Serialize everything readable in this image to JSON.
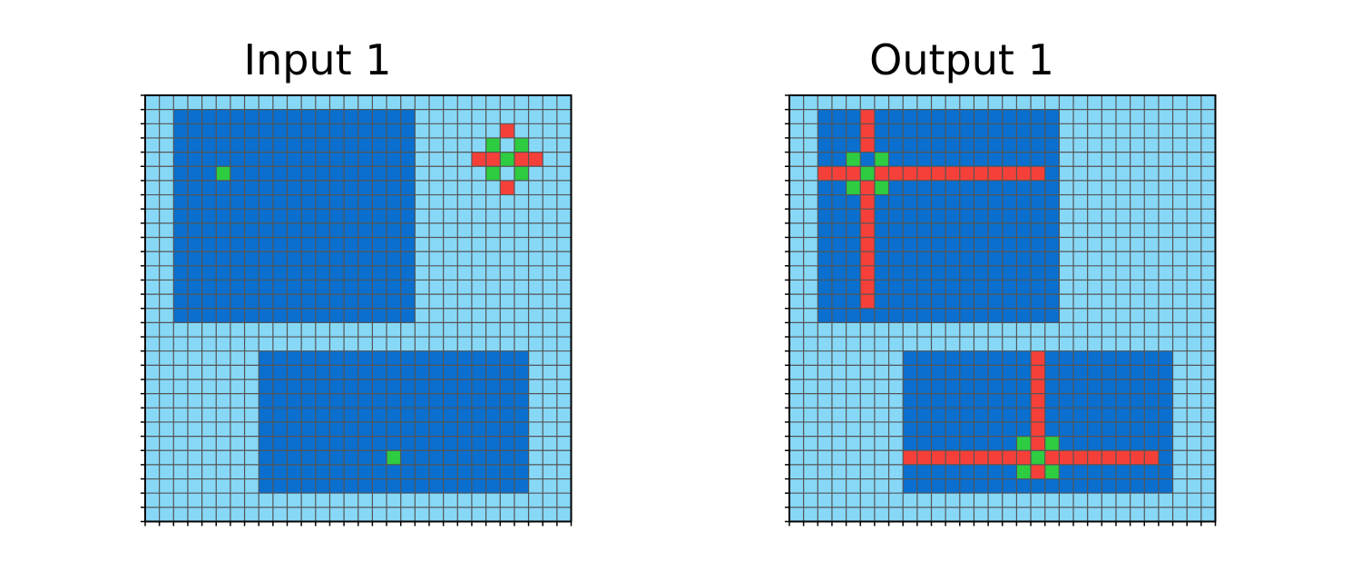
{
  "panels": [
    {
      "title": "Input 1",
      "grid": "input"
    },
    {
      "title": "Output 1",
      "grid": "output"
    }
  ],
  "grid": {
    "rows": 30,
    "cols": 30,
    "colors": {
      "background": "#87d8f7",
      "rect": "#0a6fce",
      "red": "#f5403a",
      "green": "#2ecc40",
      "gridline": "#555555",
      "frame": "#000000"
    }
  },
  "input": {
    "rects": [
      [
        1,
        2,
        15,
        18
      ],
      [
        18,
        8,
        27,
        26
      ]
    ],
    "red": [
      [
        2,
        25
      ],
      [
        4,
        23
      ],
      [
        4,
        24
      ],
      [
        4,
        26
      ],
      [
        4,
        27
      ],
      [
        6,
        25
      ]
    ],
    "green": [
      [
        3,
        24
      ],
      [
        3,
        26
      ],
      [
        4,
        25
      ],
      [
        5,
        24
      ],
      [
        5,
        26
      ],
      [
        5,
        5
      ],
      [
        25,
        17
      ]
    ]
  },
  "output": {
    "rects": [
      [
        1,
        2,
        15,
        18
      ],
      [
        18,
        8,
        27,
        26
      ]
    ],
    "red": [
      [
        1,
        5
      ],
      [
        2,
        5
      ],
      [
        3,
        5
      ],
      [
        5,
        5
      ],
      [
        6,
        5
      ],
      [
        7,
        5
      ],
      [
        8,
        5
      ],
      [
        9,
        5
      ],
      [
        10,
        5
      ],
      [
        11,
        5
      ],
      [
        12,
        5
      ],
      [
        13,
        5
      ],
      [
        14,
        5
      ],
      [
        5,
        2
      ],
      [
        5,
        3
      ],
      [
        5,
        4
      ],
      [
        5,
        6
      ],
      [
        5,
        7
      ],
      [
        5,
        8
      ],
      [
        5,
        9
      ],
      [
        5,
        10
      ],
      [
        5,
        11
      ],
      [
        5,
        12
      ],
      [
        5,
        13
      ],
      [
        5,
        14
      ],
      [
        5,
        15
      ],
      [
        5,
        16
      ],
      [
        5,
        17
      ],
      [
        18,
        17
      ],
      [
        19,
        17
      ],
      [
        20,
        17
      ],
      [
        21,
        17
      ],
      [
        22,
        17
      ],
      [
        23,
        17
      ],
      [
        24,
        17
      ],
      [
        26,
        17
      ],
      [
        25,
        8
      ],
      [
        25,
        9
      ],
      [
        25,
        10
      ],
      [
        25,
        11
      ],
      [
        25,
        12
      ],
      [
        25,
        13
      ],
      [
        25,
        14
      ],
      [
        25,
        15
      ],
      [
        25,
        16
      ],
      [
        25,
        18
      ],
      [
        25,
        19
      ],
      [
        25,
        20
      ],
      [
        25,
        21
      ],
      [
        25,
        22
      ],
      [
        25,
        23
      ],
      [
        25,
        24
      ],
      [
        25,
        25
      ]
    ],
    "green": [
      [
        4,
        4
      ],
      [
        4,
        6
      ],
      [
        5,
        5
      ],
      [
        6,
        4
      ],
      [
        6,
        6
      ],
      [
        24,
        16
      ],
      [
        24,
        18
      ],
      [
        25,
        17
      ],
      [
        26,
        16
      ],
      [
        26,
        18
      ]
    ]
  }
}
